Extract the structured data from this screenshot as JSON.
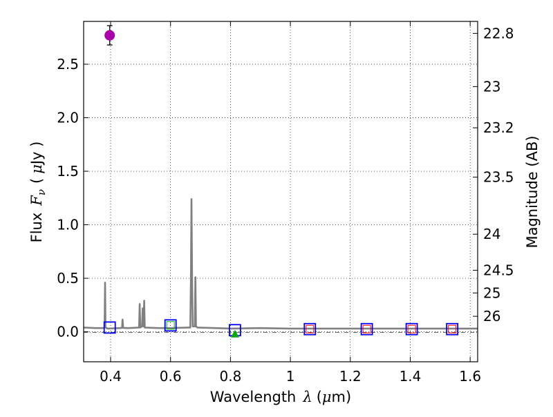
{
  "chart_data": {
    "type": "sed",
    "title": "",
    "xlabel": "Wavelength",
    "xlabel_symbol": "λ",
    "xlabel_unit_open": "(",
    "xlabel_unit_mu": "μ",
    "xlabel_unit_rest": "m)",
    "ylabel": "Flux",
    "ylabel_symbol": "F",
    "ylabel_subscript": "ν",
    "ylabel_unit_open": "(",
    "ylabel_unit_mu": "μ",
    "ylabel_unit_rest": "Jy )",
    "y2label": "Magnitude (AB)",
    "xlim": [
      0.31,
      1.625
    ],
    "ylim": [
      -0.28,
      2.9
    ],
    "grid": true,
    "x_ticks": [
      {
        "value": 0.4,
        "label": "0.4"
      },
      {
        "value": 0.6,
        "label": "0.6"
      },
      {
        "value": 0.8,
        "label": "0.8"
      },
      {
        "value": 1.0,
        "label": "1"
      },
      {
        "value": 1.2,
        "label": "1.2"
      },
      {
        "value": 1.4,
        "label": "1.4"
      },
      {
        "value": 1.6,
        "label": "1.6"
      }
    ],
    "y_ticks": [
      {
        "value": 0.0,
        "label": "0.0"
      },
      {
        "value": 0.5,
        "label": "0.5"
      },
      {
        "value": 1.0,
        "label": "1.0"
      },
      {
        "value": 1.5,
        "label": "1.5"
      },
      {
        "value": 2.0,
        "label": "2.0"
      },
      {
        "value": 2.5,
        "label": "2.5"
      }
    ],
    "mag_ticks": [
      {
        "flux": 2.788,
        "label": "22.8"
      },
      {
        "flux": 2.291,
        "label": "23"
      },
      {
        "flux": 1.906,
        "label": "23.2"
      },
      {
        "flux": 1.445,
        "label": "23.5"
      },
      {
        "flux": 0.912,
        "label": "24"
      },
      {
        "flux": 0.575,
        "label": "24.5"
      },
      {
        "flux": 0.363,
        "label": "25"
      },
      {
        "flux": 0.145,
        "label": "26"
      }
    ],
    "reference_line": {
      "name": "zero-flux line",
      "y": -0.005,
      "style": "dash-dot"
    },
    "series": [
      {
        "name": "template spectrum",
        "kind": "line",
        "color": "#808080",
        "points": [
          [
            0.31,
            0.04
          ],
          [
            0.35,
            0.035
          ],
          [
            0.375,
            0.035
          ],
          [
            0.38,
            0.04
          ],
          [
            0.3815,
            0.46
          ],
          [
            0.383,
            0.04
          ],
          [
            0.39,
            0.03
          ],
          [
            0.43,
            0.035
          ],
          [
            0.438,
            0.037
          ],
          [
            0.44,
            0.115
          ],
          [
            0.442,
            0.037
          ],
          [
            0.46,
            0.035
          ],
          [
            0.495,
            0.04
          ],
          [
            0.497,
            0.26
          ],
          [
            0.499,
            0.04
          ],
          [
            0.505,
            0.05
          ],
          [
            0.507,
            0.22
          ],
          [
            0.509,
            0.05
          ],
          [
            0.51,
            0.05
          ],
          [
            0.512,
            0.29
          ],
          [
            0.514,
            0.04
          ],
          [
            0.56,
            0.035
          ],
          [
            0.6,
            0.035
          ],
          [
            0.66,
            0.04
          ],
          [
            0.666,
            0.04
          ],
          [
            0.668,
            0.5
          ],
          [
            0.67,
            1.24
          ],
          [
            0.672,
            0.5
          ],
          [
            0.674,
            0.05
          ],
          [
            0.681,
            0.05
          ],
          [
            0.683,
            0.51
          ],
          [
            0.685,
            0.05
          ],
          [
            0.69,
            0.04
          ],
          [
            0.75,
            0.035
          ],
          [
            0.8,
            0.03
          ],
          [
            0.9,
            0.035
          ],
          [
            1.0,
            0.03
          ],
          [
            1.2,
            0.03
          ],
          [
            1.4,
            0.03
          ],
          [
            1.625,
            0.03
          ]
        ]
      },
      {
        "name": "model photometry",
        "kind": "open-square",
        "color": "#0000ff",
        "points": [
          [
            0.397,
            0.04
          ],
          [
            0.6,
            0.06
          ],
          [
            0.815,
            0.015
          ],
          [
            1.065,
            0.025
          ],
          [
            1.255,
            0.025
          ],
          [
            1.405,
            0.025
          ],
          [
            1.54,
            0.025
          ]
        ]
      },
      {
        "name": "observed (inner squares)",
        "kind": "open-square-small",
        "color": "#ff0000",
        "points": [
          [
            1.065,
            0.025
          ],
          [
            1.255,
            0.025
          ],
          [
            1.405,
            0.025
          ],
          [
            1.54,
            0.025
          ]
        ]
      },
      {
        "name": "observed (green square)",
        "kind": "open-square-small",
        "color": "#00aa00",
        "points": [
          [
            0.6,
            0.06
          ]
        ]
      },
      {
        "name": "upper limit",
        "kind": "triangle",
        "color": "#00aa00",
        "points": [
          [
            0.815,
            -0.02
          ]
        ]
      },
      {
        "name": "detection",
        "kind": "circle-errorbar",
        "color": "#aa00aa",
        "points": [
          [
            0.397,
            2.77,
            0.09
          ]
        ]
      }
    ]
  }
}
